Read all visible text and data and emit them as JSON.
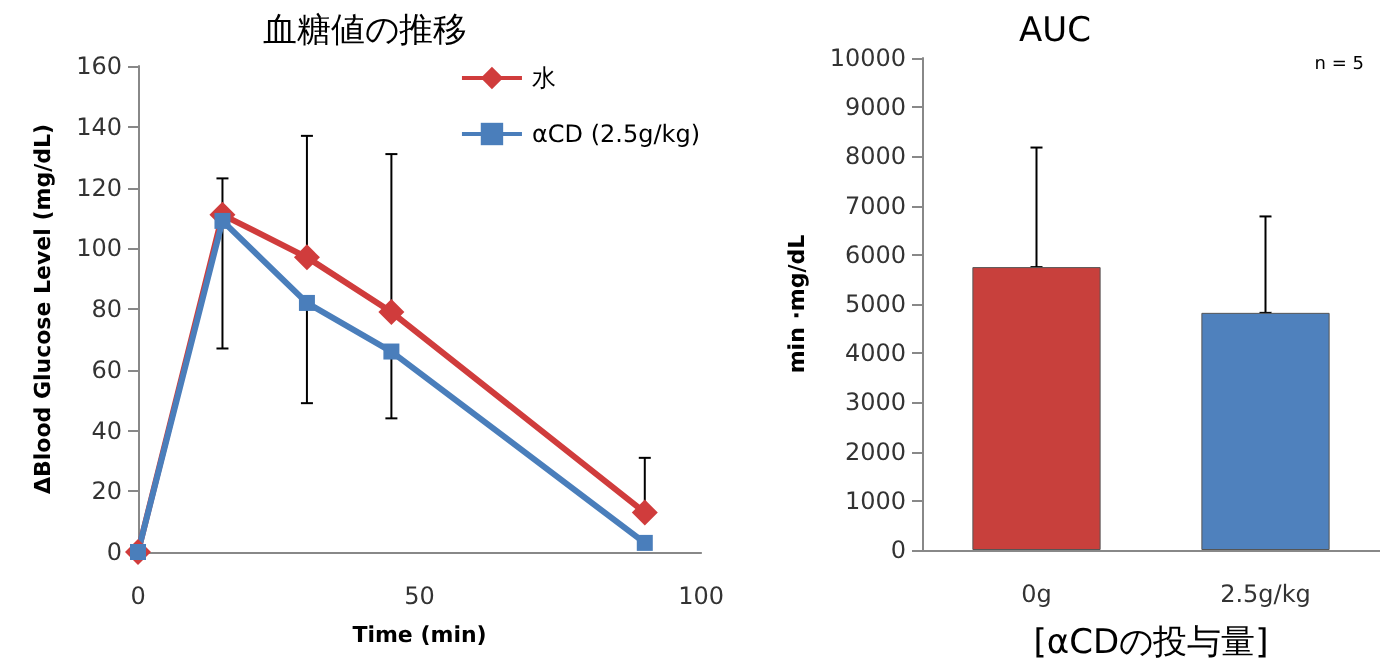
{
  "chart_data": [
    {
      "type": "line",
      "title": "血糖値の推移",
      "xlabel": "Time (min)",
      "ylabel": "ΔBlood Glucose Level (mg/dL)",
      "x": [
        0,
        15,
        30,
        45,
        90
      ],
      "xlim": [
        0,
        100
      ],
      "xticks": [
        0,
        50,
        100
      ],
      "ylim": [
        0,
        160
      ],
      "yticks": [
        0,
        20,
        40,
        60,
        80,
        100,
        120,
        140,
        160
      ],
      "series": [
        {
          "name": "水",
          "color": "#d03c3c",
          "marker": "diamond",
          "values": [
            0,
            111,
            97,
            79,
            13
          ],
          "errors": [
            null,
            [
              111,
              123
            ],
            [
              97,
              137
            ],
            [
              79,
              131
            ],
            [
              13,
              31
            ]
          ]
        },
        {
          "name": "αCD (2.5g/kg)",
          "color": "#4a7ebb",
          "marker": "square",
          "values": [
            0,
            109,
            82,
            66,
            3
          ],
          "errors": [
            null,
            [
              67,
              109
            ],
            [
              49,
              82
            ],
            [
              44,
              66
            ],
            null
          ]
        }
      ],
      "legend": "top right",
      "grid": false
    },
    {
      "type": "bar",
      "title": "AUC",
      "xlabel": "[αCDの投与量]",
      "ylabel": "min ·mg/dL",
      "annotations": [
        "n = 5"
      ],
      "categories": [
        "0g",
        "2.5g/kg"
      ],
      "values": [
        5750,
        4820
      ],
      "colors": [
        "#c8403c",
        "#4f81bd"
      ],
      "errors": [
        [
          5750,
          8180
        ],
        [
          4820,
          6780
        ]
      ],
      "ylim": [
        0,
        10000
      ],
      "yticks": [
        0,
        1000,
        2000,
        3000,
        4000,
        5000,
        6000,
        7000,
        8000,
        9000,
        10000
      ],
      "grid": false
    }
  ]
}
